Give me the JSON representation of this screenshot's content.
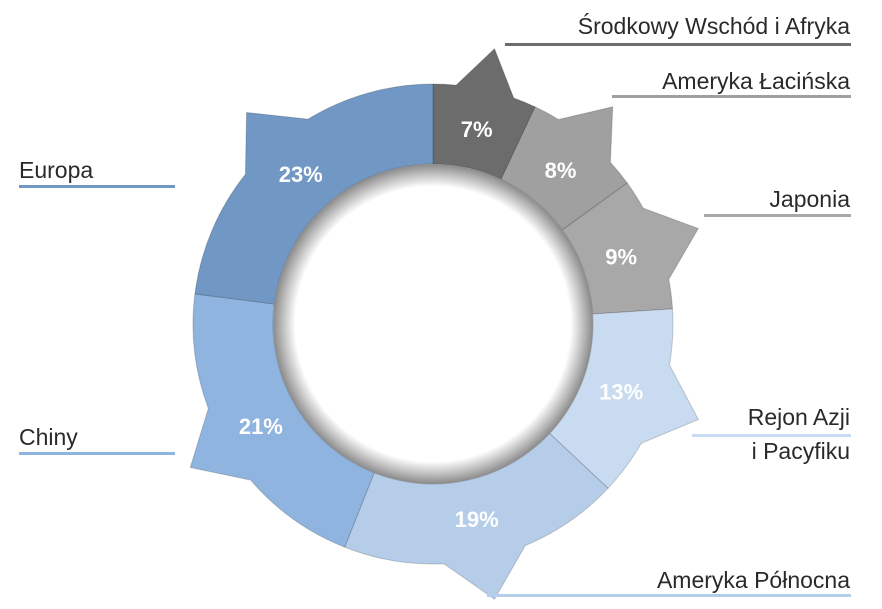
{
  "chart_data": {
    "type": "pie",
    "variant": "donut",
    "labels": [
      "Środkowy Wschód i Afryka",
      "Ameryka Łacińska",
      "Japonia",
      "Rejon Azji i Pacyfiku",
      "Ameryka Północna",
      "Chiny",
      "Europa"
    ],
    "values": [
      7,
      8,
      9,
      13,
      19,
      21,
      23
    ],
    "value_labels": [
      "7%",
      "8%",
      "9%",
      "13%",
      "19%",
      "21%",
      "23%"
    ],
    "colors": [
      "#6c6c6c",
      "#a0a0a0",
      "#a8a8a8",
      "#c8dbf0",
      "#b6cde9",
      "#8fb4e0",
      "#7197c4"
    ],
    "legend_placement": "around",
    "title": ""
  },
  "labels_text": {
    "mea": "Środkowy Wschód i Afryka",
    "latam": "Ameryka Łacińska",
    "japan": "Japonia",
    "apac_line1": "Rejon Azji",
    "apac_line2": "i Pacyfiku",
    "na": "Ameryka Północna",
    "china": "Chiny",
    "europe": "Europa"
  }
}
